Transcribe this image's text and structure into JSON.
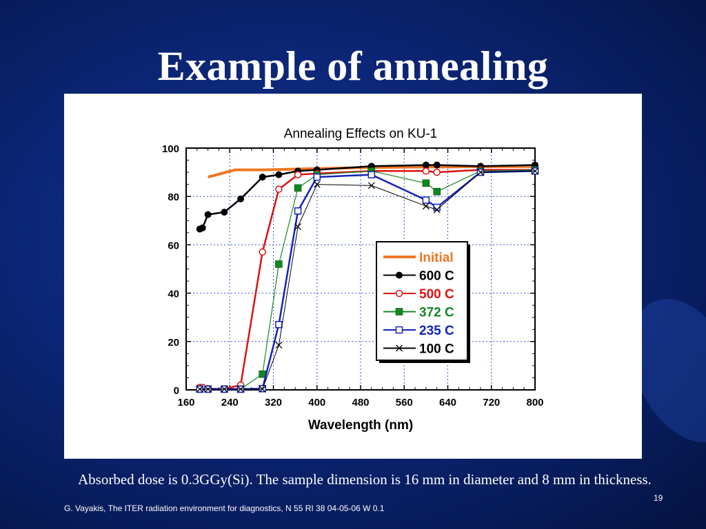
{
  "slide": {
    "title": "Example of annealing",
    "caption": "Absorbed dose is 0.3GGy(Si).  The sample dimension is 16 mm in diameter and 8 mm in thickness.",
    "footer": "G. Vayakis, The ITER radiation environment for diagnostics, N 55 RI 38 04-05-06 W 0.1",
    "page_number": "19"
  },
  "chart_data": {
    "type": "line",
    "title": "Annealing Effects on KU-1",
    "xlabel": "Wavelength (nm)",
    "ylabel": "",
    "xlim": [
      160,
      800
    ],
    "ylim": [
      0,
      100
    ],
    "xticks": [
      160,
      240,
      320,
      400,
      480,
      560,
      640,
      720,
      800
    ],
    "yticks": [
      0,
      20,
      40,
      60,
      80,
      100
    ],
    "grid": true,
    "legend": "center-right",
    "series": [
      {
        "name": "Initial",
        "color": "#ee7722",
        "marker": "none",
        "points": [
          [
            200,
            88
          ],
          [
            250,
            91
          ],
          [
            300,
            91
          ],
          [
            400,
            91.5
          ],
          [
            500,
            92
          ],
          [
            600,
            92.2
          ],
          [
            700,
            92.3
          ],
          [
            800,
            92.4
          ]
        ]
      },
      {
        "name": "600 C",
        "color": "#000000",
        "marker": "filled-circle",
        "points": [
          [
            185,
            66.5
          ],
          [
            190,
            67
          ],
          [
            200,
            72.5
          ],
          [
            230,
            73.5
          ],
          [
            260,
            79
          ],
          [
            300,
            88
          ],
          [
            330,
            89
          ],
          [
            365,
            90.5
          ],
          [
            400,
            91
          ],
          [
            500,
            92.5
          ],
          [
            600,
            93
          ],
          [
            620,
            93
          ],
          [
            700,
            92.5
          ],
          [
            800,
            93
          ]
        ]
      },
      {
        "name": "500 C",
        "color": "#dd1111",
        "marker": "open-circle",
        "points": [
          [
            185,
            1
          ],
          [
            190,
            1
          ],
          [
            200,
            0.5
          ],
          [
            230,
            0.3
          ],
          [
            260,
            2
          ],
          [
            300,
            57
          ],
          [
            330,
            83
          ],
          [
            365,
            89
          ],
          [
            400,
            89.5
          ],
          [
            500,
            90.5
          ],
          [
            600,
            90.5
          ],
          [
            620,
            90
          ],
          [
            700,
            91
          ],
          [
            800,
            91
          ]
        ]
      },
      {
        "name": "372 C",
        "color": "#118822",
        "marker": "filled-square",
        "points": [
          [
            185,
            0.3
          ],
          [
            200,
            0.3
          ],
          [
            230,
            0.3
          ],
          [
            260,
            0.3
          ],
          [
            300,
            6.5
          ],
          [
            330,
            52
          ],
          [
            365,
            83.5
          ],
          [
            400,
            89
          ],
          [
            500,
            90.5
          ],
          [
            600,
            85.5
          ],
          [
            620,
            82
          ],
          [
            700,
            90.5
          ],
          [
            800,
            91
          ]
        ]
      },
      {
        "name": "235 C",
        "color": "#1122bb",
        "marker": "open-square",
        "points": [
          [
            185,
            0.3
          ],
          [
            200,
            0.3
          ],
          [
            230,
            0.3
          ],
          [
            260,
            0.3
          ],
          [
            300,
            0.5
          ],
          [
            330,
            27
          ],
          [
            365,
            74
          ],
          [
            400,
            88
          ],
          [
            500,
            89
          ],
          [
            600,
            78.5
          ],
          [
            620,
            75.5
          ],
          [
            700,
            90
          ],
          [
            800,
            90.5
          ]
        ]
      },
      {
        "name": "100 C",
        "color": "#000000",
        "marker": "x",
        "points": [
          [
            185,
            0.3
          ],
          [
            200,
            0.3
          ],
          [
            230,
            0.3
          ],
          [
            260,
            0.3
          ],
          [
            300,
            0.3
          ],
          [
            330,
            18.5
          ],
          [
            365,
            67.5
          ],
          [
            400,
            85
          ],
          [
            500,
            84.5
          ],
          [
            600,
            76
          ],
          [
            620,
            74.5
          ],
          [
            700,
            90
          ],
          [
            800,
            90.5
          ]
        ]
      }
    ]
  }
}
